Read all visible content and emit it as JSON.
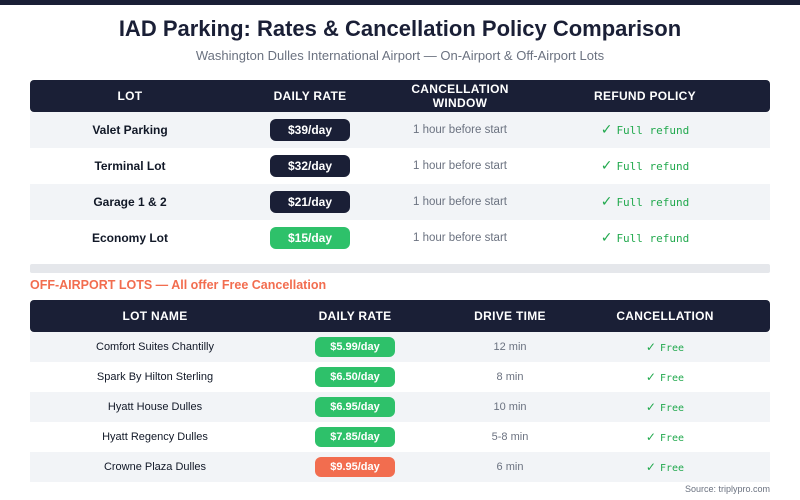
{
  "header": {
    "title": "IAD Parking: Rates & Cancellation Policy Comparison",
    "subtitle": "Washington Dulles International Airport — On-Airport & Off-Airport Lots"
  },
  "colors": {
    "header_bg": "#1a1f36",
    "rate_dark": "#1a1f36",
    "rate_green": "#2ec16a",
    "rate_orange": "#f26d4f",
    "check_green": "#22a94e",
    "section_label": "#f26d4f"
  },
  "on_airport": {
    "columns": [
      "LOT",
      "DAILY RATE",
      "CANCELLATION WINDOW",
      "REFUND POLICY"
    ],
    "rows": [
      {
        "lot": "Valet Parking",
        "rate": "$39/day",
        "rate_style": "dark",
        "window": "1 hour before start",
        "refund": "Full refund"
      },
      {
        "lot": "Terminal Lot",
        "rate": "$32/day",
        "rate_style": "dark",
        "window": "1 hour before start",
        "refund": "Full refund"
      },
      {
        "lot": "Garage 1 & 2",
        "rate": "$21/day",
        "rate_style": "dark",
        "window": "1 hour before start",
        "refund": "Full refund"
      },
      {
        "lot": "Economy Lot",
        "rate": "$15/day",
        "rate_style": "green",
        "window": "1 hour before start",
        "refund": "Full refund"
      }
    ]
  },
  "off_airport": {
    "section_label": "OFF-AIRPORT LOTS — All offer Free Cancellation",
    "columns": [
      "LOT NAME",
      "DAILY RATE",
      "DRIVE TIME",
      "CANCELLATION"
    ],
    "rows": [
      {
        "lot": "Comfort Suites Chantilly",
        "rate": "$5.99/day",
        "rate_style": "green",
        "drive": "12 min",
        "cancel": "Free"
      },
      {
        "lot": "Spark By Hilton Sterling",
        "rate": "$6.50/day",
        "rate_style": "green",
        "drive": "8 min",
        "cancel": "Free"
      },
      {
        "lot": "Hyatt House Dulles",
        "rate": "$6.95/day",
        "rate_style": "green",
        "drive": "10 min",
        "cancel": "Free"
      },
      {
        "lot": "Hyatt Regency Dulles",
        "rate": "$7.85/day",
        "rate_style": "green",
        "drive": "5-8 min",
        "cancel": "Free"
      },
      {
        "lot": "Crowne Plaza Dulles",
        "rate": "$9.95/day",
        "rate_style": "orange",
        "drive": "6 min",
        "cancel": "Free"
      }
    ]
  },
  "footer": {
    "source": "Source: triplypro.com"
  },
  "icons": {
    "check": "check-icon"
  }
}
